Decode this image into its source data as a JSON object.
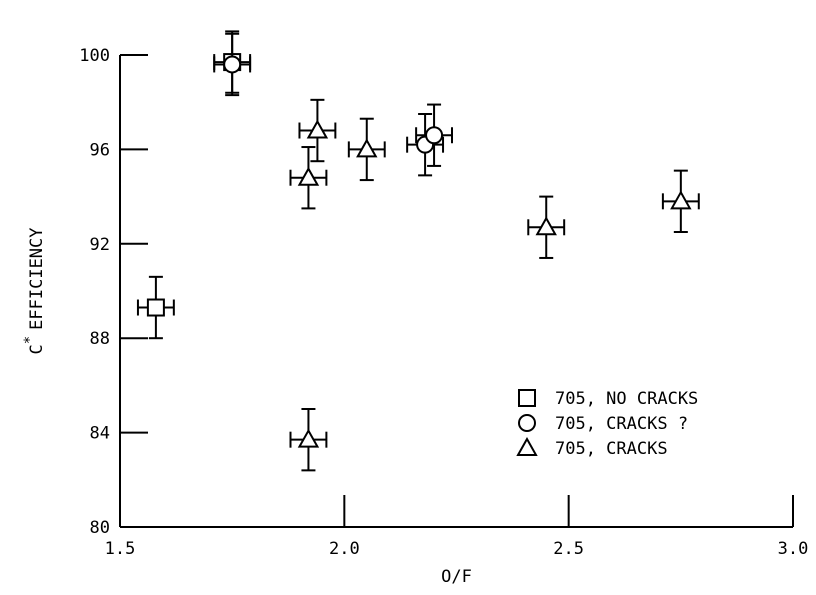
{
  "chart_data": {
    "type": "scatter",
    "xlabel": "O/F",
    "ylabel": "EFFICIENCY",
    "ylabel_prefix": "C",
    "ylabel_superscript": "*",
    "xlim": [
      1.5,
      3.0
    ],
    "ylim": [
      80,
      100
    ],
    "x_ticks": [
      "1.5",
      "2.0",
      "2.5",
      "3.0"
    ],
    "y_ticks": [
      "80",
      "84",
      "88",
      "92",
      "96",
      "100"
    ],
    "grid": false,
    "legend_position": "lower-right",
    "series": [
      {
        "name": "705, NO CRACKS",
        "marker": "square",
        "points": [
          {
            "x": 1.58,
            "y": 89.3,
            "xerr": 0.04,
            "yerr": 1.3
          },
          {
            "x": 1.75,
            "y": 99.7,
            "xerr": 0.04,
            "yerr": 1.3
          }
        ]
      },
      {
        "name": "705, CRACKS ?",
        "marker": "circle",
        "points": [
          {
            "x": 1.75,
            "y": 99.6,
            "xerr": 0.04,
            "yerr": 1.3
          },
          {
            "x": 2.18,
            "y": 96.2,
            "xerr": 0.04,
            "yerr": 1.3
          },
          {
            "x": 2.2,
            "y": 96.6,
            "xerr": 0.04,
            "yerr": 1.3
          }
        ]
      },
      {
        "name": "705, CRACKS",
        "marker": "triangle",
        "points": [
          {
            "x": 1.92,
            "y": 94.8,
            "xerr": 0.04,
            "yerr": 1.3
          },
          {
            "x": 1.94,
            "y": 96.8,
            "xerr": 0.04,
            "yerr": 1.3
          },
          {
            "x": 1.92,
            "y": 83.7,
            "xerr": 0.04,
            "yerr": 1.3
          },
          {
            "x": 2.05,
            "y": 96.0,
            "xerr": 0.04,
            "yerr": 1.3
          },
          {
            "x": 2.45,
            "y": 92.7,
            "xerr": 0.04,
            "yerr": 1.3
          },
          {
            "x": 2.75,
            "y": 93.8,
            "xerr": 0.04,
            "yerr": 1.3
          }
        ]
      }
    ]
  }
}
